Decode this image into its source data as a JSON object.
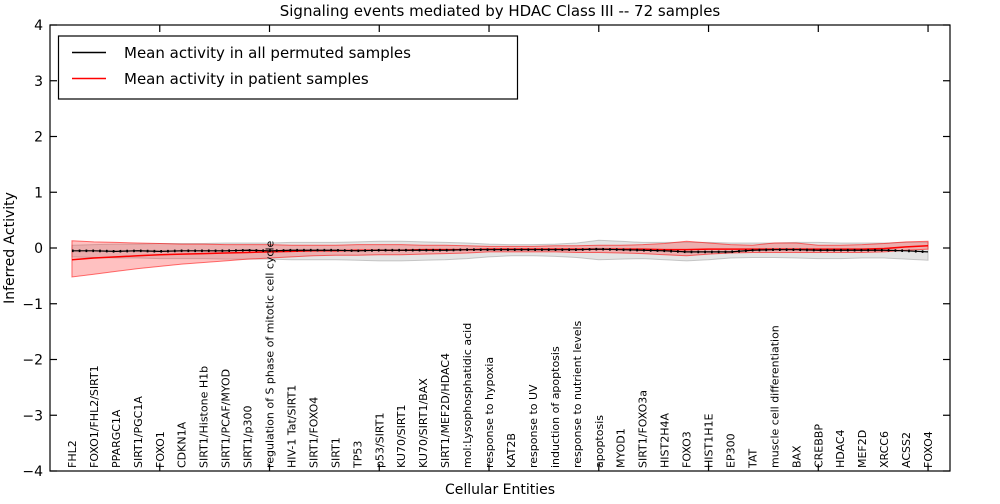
{
  "title": "Signaling events mediated by HDAC Class III -- 72 samples",
  "legend": {
    "items": [
      {
        "label": "Mean activity in all permuted samples",
        "color": "#000000"
      },
      {
        "label": "Mean activity in patient samples",
        "color": "#ff0000"
      }
    ]
  },
  "chart_data": {
    "type": "line",
    "title": "Signaling events mediated by HDAC Class III -- 72 samples",
    "xlabel": "Cellular Entities",
    "ylabel": "Inferred Activity",
    "ylim": [
      -4,
      4
    ],
    "yticks": [
      -4,
      -3,
      -2,
      -1,
      0,
      1,
      2,
      3,
      4
    ],
    "xlim": [
      0,
      41
    ],
    "numeric_xticks": [
      5,
      10,
      15,
      20,
      25,
      30,
      35,
      40
    ],
    "grid": false,
    "legend_position": "upper left",
    "categories": [
      "FHL2",
      "FOXO1/FHL2/SIRT1",
      "PPARGC1A",
      "SIRT1/PGC1A",
      "FOXO1",
      "CDKN1A",
      "SIRT1/Histone H1b",
      "SIRT1/PCAF/MYOD",
      "SIRT1/p300",
      "regulation of S phase of mitotic cell cycle",
      "HIV-1 Tat/SIRT1",
      "SIRT1/FOXO4",
      "SIRT1",
      "TP53",
      "p53/SIRT1",
      "KU70/SIRT1",
      "KU70/SIRT1/BAX",
      "SIRT1/MEF2D/HDAC4",
      "mol:Lysophosphatidic acid",
      "response to hypoxia",
      "KAT2B",
      "response to UV",
      "induction of apoptosis",
      "response to nutrient levels",
      "apoptosis",
      "MYOD1",
      "SIRT1/FOXO3a",
      "HIST2H4A",
      "FOXO3",
      "HIST1H1E",
      "EP300",
      "TAT",
      "muscle cell differentiation",
      "BAX",
      "CREBBP",
      "HDAC4",
      "MEF2D",
      "XRCC6",
      "ACSS2",
      "FOXO4"
    ],
    "series": [
      {
        "name": "Mean activity in all permuted samples",
        "color": "#000000",
        "band_fill": "rgba(130,130,130,0.22)",
        "band_edge": "rgba(130,130,130,0.40)",
        "values": [
          -0.05,
          -0.05,
          -0.06,
          -0.05,
          -0.06,
          -0.05,
          -0.05,
          -0.05,
          -0.04,
          -0.05,
          -0.04,
          -0.04,
          -0.04,
          -0.05,
          -0.04,
          -0.04,
          -0.04,
          -0.04,
          -0.03,
          -0.03,
          -0.03,
          -0.03,
          -0.03,
          -0.03,
          -0.02,
          -0.03,
          -0.04,
          -0.05,
          -0.07,
          -0.07,
          -0.07,
          -0.04,
          -0.03,
          -0.03,
          -0.04,
          -0.04,
          -0.04,
          -0.04,
          -0.05,
          -0.07
        ],
        "band_upper": [
          0.05,
          0.06,
          0.07,
          0.07,
          0.08,
          0.08,
          0.08,
          0.09,
          0.09,
          0.09,
          0.1,
          0.1,
          0.1,
          0.11,
          0.12,
          0.12,
          0.11,
          0.1,
          0.09,
          0.07,
          0.06,
          0.06,
          0.07,
          0.09,
          0.14,
          0.12,
          0.1,
          0.1,
          0.1,
          0.1,
          0.09,
          0.09,
          0.09,
          0.1,
          0.1,
          0.09,
          0.09,
          0.09,
          0.1,
          0.1
        ],
        "band_lower": [
          -0.16,
          -0.17,
          -0.18,
          -0.18,
          -0.19,
          -0.19,
          -0.19,
          -0.2,
          -0.2,
          -0.2,
          -0.21,
          -0.21,
          -0.21,
          -0.22,
          -0.23,
          -0.23,
          -0.22,
          -0.21,
          -0.19,
          -0.16,
          -0.14,
          -0.14,
          -0.15,
          -0.17,
          -0.21,
          -0.2,
          -0.19,
          -0.21,
          -0.23,
          -0.21,
          -0.18,
          -0.17,
          -0.17,
          -0.18,
          -0.19,
          -0.19,
          -0.18,
          -0.18,
          -0.2,
          -0.22
        ]
      },
      {
        "name": "Mean activity in patient samples",
        "color": "#ff0000",
        "band_fill": "rgba(255,50,50,0.30)",
        "band_edge": "rgba(255,0,0,0.55)",
        "values": [
          -0.21,
          -0.18,
          -0.16,
          -0.14,
          -0.12,
          -0.11,
          -0.1,
          -0.09,
          -0.08,
          -0.07,
          -0.06,
          -0.05,
          -0.05,
          -0.04,
          -0.04,
          -0.04,
          -0.03,
          -0.03,
          -0.03,
          -0.02,
          -0.02,
          -0.02,
          -0.02,
          -0.02,
          -0.02,
          -0.02,
          -0.02,
          -0.03,
          -0.03,
          -0.02,
          -0.02,
          -0.02,
          -0.02,
          -0.02,
          -0.02,
          -0.02,
          -0.02,
          -0.01,
          0.02,
          0.04
        ],
        "band_upper": [
          0.13,
          0.11,
          0.1,
          0.09,
          0.08,
          0.07,
          0.07,
          0.06,
          0.06,
          0.06,
          0.05,
          0.05,
          0.05,
          0.06,
          0.06,
          0.06,
          0.05,
          0.05,
          0.04,
          0.03,
          0.03,
          0.03,
          0.04,
          0.04,
          0.05,
          0.05,
          0.06,
          0.08,
          0.12,
          0.09,
          0.06,
          0.05,
          0.09,
          0.09,
          0.05,
          0.05,
          0.06,
          0.08,
          0.11,
          0.12
        ],
        "band_lower": [
          -0.52,
          -0.47,
          -0.42,
          -0.37,
          -0.33,
          -0.29,
          -0.26,
          -0.23,
          -0.2,
          -0.18,
          -0.16,
          -0.14,
          -0.13,
          -0.13,
          -0.12,
          -0.12,
          -0.11,
          -0.1,
          -0.09,
          -0.07,
          -0.07,
          -0.07,
          -0.07,
          -0.08,
          -0.08,
          -0.09,
          -0.1,
          -0.12,
          -0.14,
          -0.11,
          -0.09,
          -0.08,
          -0.08,
          -0.08,
          -0.08,
          -0.08,
          -0.08,
          -0.07,
          -0.04,
          -0.02
        ]
      }
    ]
  }
}
